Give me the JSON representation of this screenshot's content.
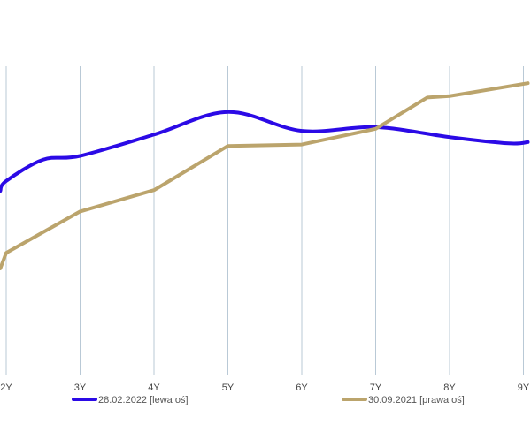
{
  "chart_data": {
    "type": "line",
    "title": "",
    "xlabel": "",
    "ylabel": "",
    "categories": [
      "2Y",
      "3Y",
      "4Y",
      "5Y",
      "6Y",
      "7Y",
      "8Y",
      "9Y"
    ],
    "x_numeric": [
      2,
      3,
      4,
      5,
      6,
      7,
      8,
      9
    ],
    "xlim": [
      1.92,
      9.06
    ],
    "grid": {
      "vertical": true,
      "horizontal": false
    },
    "legend_placement": "bottom",
    "series": [
      {
        "name": "28.02.2022 [lewa oś]",
        "axis": "left",
        "color": "#2b0ae6",
        "smooth": true,
        "x": [
          1.92,
          2.0,
          2.5,
          3.0,
          4.0,
          5.0,
          6.0,
          7.0,
          8.0,
          8.8,
          9.06
        ],
        "values": [
          4.47,
          4.55,
          4.72,
          4.75,
          4.92,
          5.1,
          4.95,
          4.98,
          4.9,
          4.85,
          4.86
        ],
        "ylim": [
          3.0,
          5.5
        ]
      },
      {
        "name": "30.09.2021 [prawa oś]",
        "axis": "right",
        "color": "#bba46c",
        "smooth": false,
        "x": [
          1.92,
          2.0,
          3.0,
          4.0,
          5.0,
          6.0,
          7.0,
          7.7,
          8.0,
          9.06
        ],
        "values": [
          1.75,
          1.86,
          2.15,
          2.3,
          2.61,
          2.62,
          2.73,
          2.95,
          2.96,
          3.05
        ],
        "ylim": [
          1.0,
          3.2
        ]
      }
    ]
  }
}
